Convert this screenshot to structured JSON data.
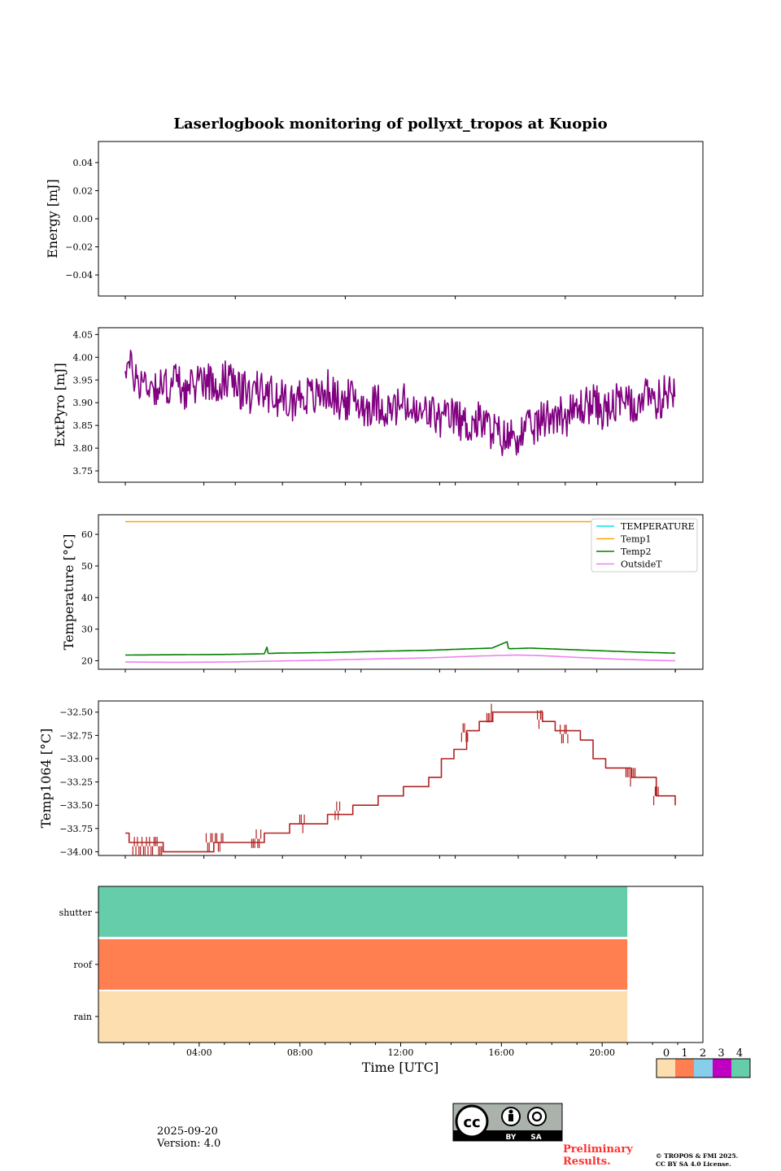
{
  "chart_data": [
    {
      "type": "line",
      "title": "Laserlogbook monitoring of pollyxt_tropos at Kuopio",
      "ylabel": "Energy [mJ]",
      "ylim": [
        -0.055,
        0.055
      ],
      "yticks": [
        "0.04",
        "0.02",
        "0.00",
        "−0.02",
        "−0.04"
      ],
      "ytick_values": [
        0.04,
        0.02,
        0.0,
        -0.02,
        -0.04
      ],
      "series": []
    },
    {
      "type": "line",
      "ylabel": "ExtPyro [mJ]",
      "ylim": [
        3.725,
        4.065
      ],
      "yticks": [
        "4.05",
        "4.00",
        "3.95",
        "3.90",
        "3.85",
        "3.80",
        "3.75"
      ],
      "ytick_values": [
        4.05,
        4.0,
        3.95,
        3.9,
        3.85,
        3.8,
        3.75
      ],
      "series": [
        {
          "name": "ExtPyro",
          "color": "#800080",
          "x_hours": [
            0.0,
            0.5,
            1.0,
            1.5,
            2.0,
            2.5,
            3.0,
            3.5,
            4.0,
            4.5,
            5.0,
            5.5,
            6.0,
            6.5,
            7.0,
            7.5,
            8.0,
            8.5,
            9.0,
            9.5,
            10.0,
            10.5,
            11.0,
            11.5,
            12.0,
            12.5,
            13.0,
            13.5,
            14.0,
            14.5,
            15.0,
            15.5,
            16.0,
            16.5,
            17.0,
            17.5,
            18.0,
            18.5,
            19.0,
            19.5,
            20.0,
            20.5,
            21.0,
            21.5
          ],
          "values": [
            3.99,
            3.95,
            3.94,
            3.93,
            3.95,
            3.92,
            3.96,
            3.94,
            3.95,
            3.93,
            3.92,
            3.93,
            3.91,
            3.9,
            3.92,
            3.91,
            3.93,
            3.9,
            3.91,
            3.89,
            3.9,
            3.88,
            3.9,
            3.87,
            3.88,
            3.86,
            3.87,
            3.85,
            3.86,
            3.84,
            3.82,
            3.83,
            3.84,
            3.86,
            3.88,
            3.87,
            3.89,
            3.9,
            3.88,
            3.9,
            3.89,
            3.91,
            3.9,
            3.93
          ],
          "noise_amplitude": 0.045
        }
      ]
    },
    {
      "type": "line",
      "ylabel": "Temperature [°C]",
      "ylim": [
        17.3,
        66.2
      ],
      "yticks": [
        "60",
        "50",
        "40",
        "30",
        "20"
      ],
      "ytick_values": [
        60,
        50,
        40,
        30,
        20
      ],
      "legend": {
        "placement": "top-right",
        "entries": [
          "TEMPERATURE",
          "Temp1",
          "Temp2",
          "OutsideT"
        ]
      },
      "series": [
        {
          "name": "TEMPERATURE",
          "color": "#00e5ee",
          "x_hours": [],
          "values": []
        },
        {
          "name": "Temp1",
          "color": "#ffa500",
          "x_hours": [
            0.0,
            21.75
          ],
          "values": [
            64.0,
            64.0
          ]
        },
        {
          "name": "Temp2",
          "color": "#008000",
          "x_hours": [
            0.0,
            2.0,
            4.0,
            5.5,
            5.6,
            5.65,
            5.7,
            6.0,
            8.0,
            10.0,
            12.0,
            13.0,
            14.5,
            15.1,
            15.15,
            15.2,
            16.0,
            18.0,
            20.0,
            21.75
          ],
          "values": [
            21.8,
            21.9,
            22.0,
            22.2,
            24.3,
            22.4,
            22.3,
            22.4,
            22.6,
            23.0,
            23.3,
            23.6,
            24.0,
            26.0,
            24.0,
            23.8,
            24.0,
            23.4,
            22.8,
            22.4
          ]
        },
        {
          "name": "OutsideT",
          "color": "#ee82ee",
          "x_hours": [
            0.0,
            2.0,
            4.0,
            6.0,
            8.0,
            10.0,
            12.0,
            14.0,
            15.5,
            16.5,
            18.0,
            19.5,
            21.0,
            21.75
          ],
          "values": [
            19.6,
            19.5,
            19.6,
            19.9,
            20.2,
            20.6,
            20.9,
            21.5,
            21.8,
            21.6,
            21.0,
            20.5,
            20.1,
            20.0
          ]
        }
      ]
    },
    {
      "type": "line",
      "ylabel": "Temp1064 [°C]",
      "ylim": [
        -34.04,
        -32.38
      ],
      "yticks": [
        "−32.50",
        "−32.75",
        "−33.00",
        "−33.25",
        "−33.50",
        "−33.75",
        "−34.00"
      ],
      "ytick_values": [
        -32.5,
        -32.75,
        -33.0,
        -33.25,
        -33.5,
        -33.75,
        -34.0
      ],
      "series": [
        {
          "name": "Temp1064",
          "color": "#b22222",
          "step_x_hours": [
            0.0,
            0.15,
            0.5,
            1.5,
            2.5,
            3.5,
            5.0,
            5.5,
            6.5,
            7.0,
            8.0,
            9.0,
            10.0,
            11.0,
            12.0,
            12.5,
            13.0,
            13.5,
            14.0,
            14.5,
            16.0,
            16.5,
            17.0,
            18.0,
            18.5,
            19.0,
            20.0,
            21.0,
            21.75
          ],
          "values": [
            -33.8,
            -33.9,
            -33.9,
            -34.0,
            -34.0,
            -33.9,
            -33.9,
            -33.8,
            -33.7,
            -33.7,
            -33.6,
            -33.5,
            -33.4,
            -33.3,
            -33.2,
            -33.0,
            -32.9,
            -32.7,
            -32.6,
            -32.5,
            -32.5,
            -32.6,
            -32.7,
            -32.8,
            -33.0,
            -33.1,
            -33.2,
            -33.4,
            -33.5
          ],
          "noisy_steps": [
            [
              0.3,
              1.5
            ],
            [
              3.2,
              3.9
            ],
            [
              5.0,
              5.4
            ],
            [
              6.9,
              7.1
            ],
            [
              8.3,
              8.5
            ],
            [
              13.3,
              13.6
            ],
            [
              14.3,
              14.6
            ],
            [
              16.3,
              16.5
            ],
            [
              17.2,
              17.5
            ],
            [
              19.8,
              20.2
            ],
            [
              20.9,
              21.1
            ]
          ]
        }
      ]
    },
    {
      "type": "heatmap",
      "xlabel": "Time [UTC]",
      "xlim_hours": [
        0.0,
        24.0
      ],
      "xticks": [
        "04:00",
        "08:00",
        "12:00",
        "16:00",
        "20:00"
      ],
      "xtick_hours": [
        4,
        8,
        12,
        16,
        20
      ],
      "rows": [
        "shutter",
        "roof",
        "rain"
      ],
      "row_colors": [
        "#66cdaa",
        "#ff7f50",
        "#fddeae"
      ],
      "filled_until_hours": 21.0
    }
  ],
  "shared_x": {
    "start_hours": 1.05,
    "end_hours": 22.8,
    "top_axes_xlim_hours": [
      0.0,
      24.0
    ]
  },
  "colorbar": {
    "labels": [
      "0",
      "1",
      "2",
      "3",
      "4"
    ],
    "colors": [
      "#fddeae",
      "#ff7f50",
      "#87ceeb",
      "#c000c0",
      "#66cdaa"
    ]
  },
  "footer": {
    "date": "2025-09-20",
    "version": "Version: 4.0",
    "license_badge": {
      "words": [
        "BY",
        "SA"
      ],
      "icon": "cc-by-sa-icon"
    },
    "preliminary_line1": "Preliminary",
    "preliminary_line2": "Results.",
    "preliminary_color": "#ff3030",
    "copyright_line1": "© TROPOS & FMI 2025.",
    "copyright_line2": "CC BY SA 4.0 License."
  }
}
